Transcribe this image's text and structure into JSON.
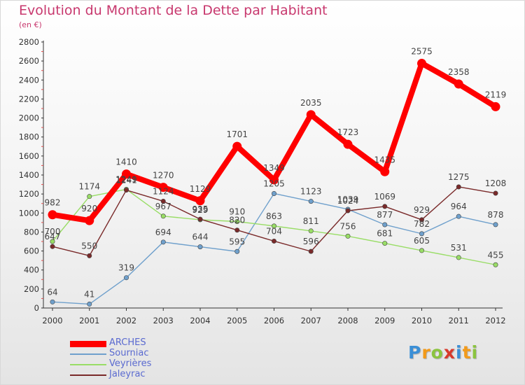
{
  "title": "Evolution du Montant de la Dette par Habitant",
  "subtitle": "(en €)",
  "logo": {
    "text": "Proxiti",
    "letters": [
      {
        "ch": "P",
        "color": "#3b8fd6"
      },
      {
        "ch": "r",
        "color": "#f29a1a"
      },
      {
        "ch": "o",
        "color": "#8bc43f"
      },
      {
        "ch": "x",
        "color": "#d8392b"
      },
      {
        "ch": "i",
        "color": "#3b8fd6"
      },
      {
        "ch": "t",
        "color": "#f29a1a"
      },
      {
        "ch": "i",
        "color": "#8bc43f"
      }
    ]
  },
  "chart_data": {
    "type": "line",
    "title": "Evolution du Montant de la Dette par Habitant",
    "ylabel": "(en €)",
    "xlabel": "",
    "x": [
      2000,
      2001,
      2002,
      2003,
      2004,
      2005,
      2006,
      2007,
      2008,
      2009,
      2010,
      2011,
      2012
    ],
    "ylim": [
      0,
      2800
    ],
    "yticks": [
      0,
      200,
      400,
      600,
      800,
      1000,
      1200,
      1400,
      1600,
      1800,
      2000,
      2200,
      2400,
      2600,
      2800
    ],
    "grid": false,
    "legend": "bottom-left",
    "series": [
      {
        "name": "ARCHES",
        "color": "#ff0000",
        "values": [
          982,
          920,
          1410,
          1270,
          1129,
          1701,
          1349,
          2035,
          1723,
          1435,
          2575,
          2358,
          2119
        ]
      },
      {
        "name": "Sourniac",
        "color": "#6fa0cc",
        "values": [
          64,
          41,
          319,
          694,
          644,
          595,
          1205,
          1123,
          1039,
          877,
          782,
          964,
          878
        ]
      },
      {
        "name": "Veyrières",
        "color": "#99dd66",
        "values": [
          700,
          1174,
          1249,
          967,
          929,
          910,
          863,
          811,
          756,
          681,
          605,
          531,
          455
        ]
      },
      {
        "name": "Jaleyrac",
        "color": "#7a2a2a",
        "values": [
          647,
          550,
          1241,
          1124,
          935,
          820,
          704,
          596,
          1024,
          1069,
          929,
          1275,
          1208
        ]
      }
    ]
  }
}
